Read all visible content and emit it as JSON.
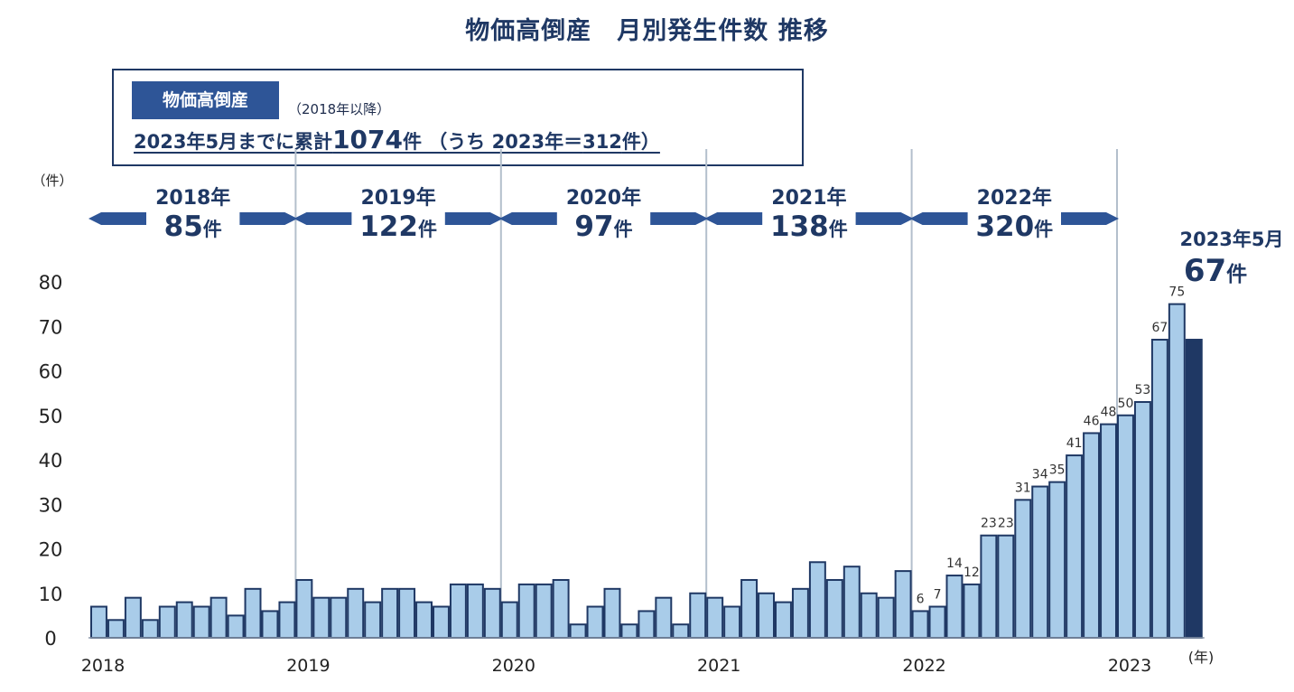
{
  "title": "物価高倒産　月別発生件数 推移",
  "summary": {
    "tag": "物価高倒産",
    "note": "（2018年以降）",
    "line_pre": "2023年5月までに累計",
    "line_total": "1074",
    "line_mid": "件 （うち 2023年＝",
    "line_year": "312",
    "line_post": "件）"
  },
  "colors": {
    "bar": "#a9cce9",
    "bar_edge": "#1f3864",
    "highlight": "#1f3864",
    "arrow": "#2e5597",
    "grid": "#b3bfcc",
    "text": "#1f3864"
  },
  "chart_data": {
    "type": "bar",
    "title": "物価高倒産　月別発生件数 推移",
    "yunit": "（件）",
    "xunit": "(年)",
    "ylim": [
      0,
      80
    ],
    "yticks": [
      0,
      10,
      20,
      30,
      40,
      50,
      60,
      70,
      80
    ],
    "year_labels": [
      "2018",
      "2019",
      "2020",
      "2021",
      "2022",
      "2023"
    ],
    "values": [
      7,
      4,
      9,
      4,
      7,
      8,
      7,
      9,
      5,
      11,
      6,
      8,
      13,
      9,
      9,
      11,
      8,
      11,
      11,
      8,
      7,
      12,
      12,
      11,
      8,
      12,
      12,
      13,
      3,
      7,
      11,
      3,
      6,
      9,
      3,
      10,
      9,
      7,
      13,
      10,
      8,
      11,
      17,
      13,
      16,
      10,
      9,
      15,
      6,
      7,
      14,
      12,
      23,
      23,
      31,
      34,
      35,
      41,
      46,
      48,
      50,
      53,
      67,
      75,
      67
    ],
    "data_labels": [
      {
        "index": 48,
        "text": "6"
      },
      {
        "index": 49,
        "text": "7"
      },
      {
        "index": 50,
        "text": "14"
      },
      {
        "index": 51,
        "text": "12"
      },
      {
        "index": 52,
        "text": "23"
      },
      {
        "index": 53,
        "text": "23"
      },
      {
        "index": 54,
        "text": "31"
      },
      {
        "index": 55,
        "text": "34"
      },
      {
        "index": 56,
        "text": "35"
      },
      {
        "index": 57,
        "text": "41"
      },
      {
        "index": 58,
        "text": "46"
      },
      {
        "index": 59,
        "text": "48"
      },
      {
        "index": 60,
        "text": "50"
      },
      {
        "index": 61,
        "text": "53"
      },
      {
        "index": 62,
        "text": "67"
      },
      {
        "index": 63,
        "text": "75"
      }
    ],
    "highlight_index": 64,
    "year_totals": [
      {
        "year": "2018年",
        "count": "85",
        "unit": "件"
      },
      {
        "year": "2019年",
        "count": "122",
        "unit": "件"
      },
      {
        "year": "2020年",
        "count": "97",
        "unit": "件"
      },
      {
        "year": "2021年",
        "count": "138",
        "unit": "件"
      },
      {
        "year": "2022年",
        "count": "320",
        "unit": "件"
      }
    ],
    "latest": {
      "label": "2023年5月",
      "count": "67",
      "unit": "件"
    },
    "grid": false
  }
}
